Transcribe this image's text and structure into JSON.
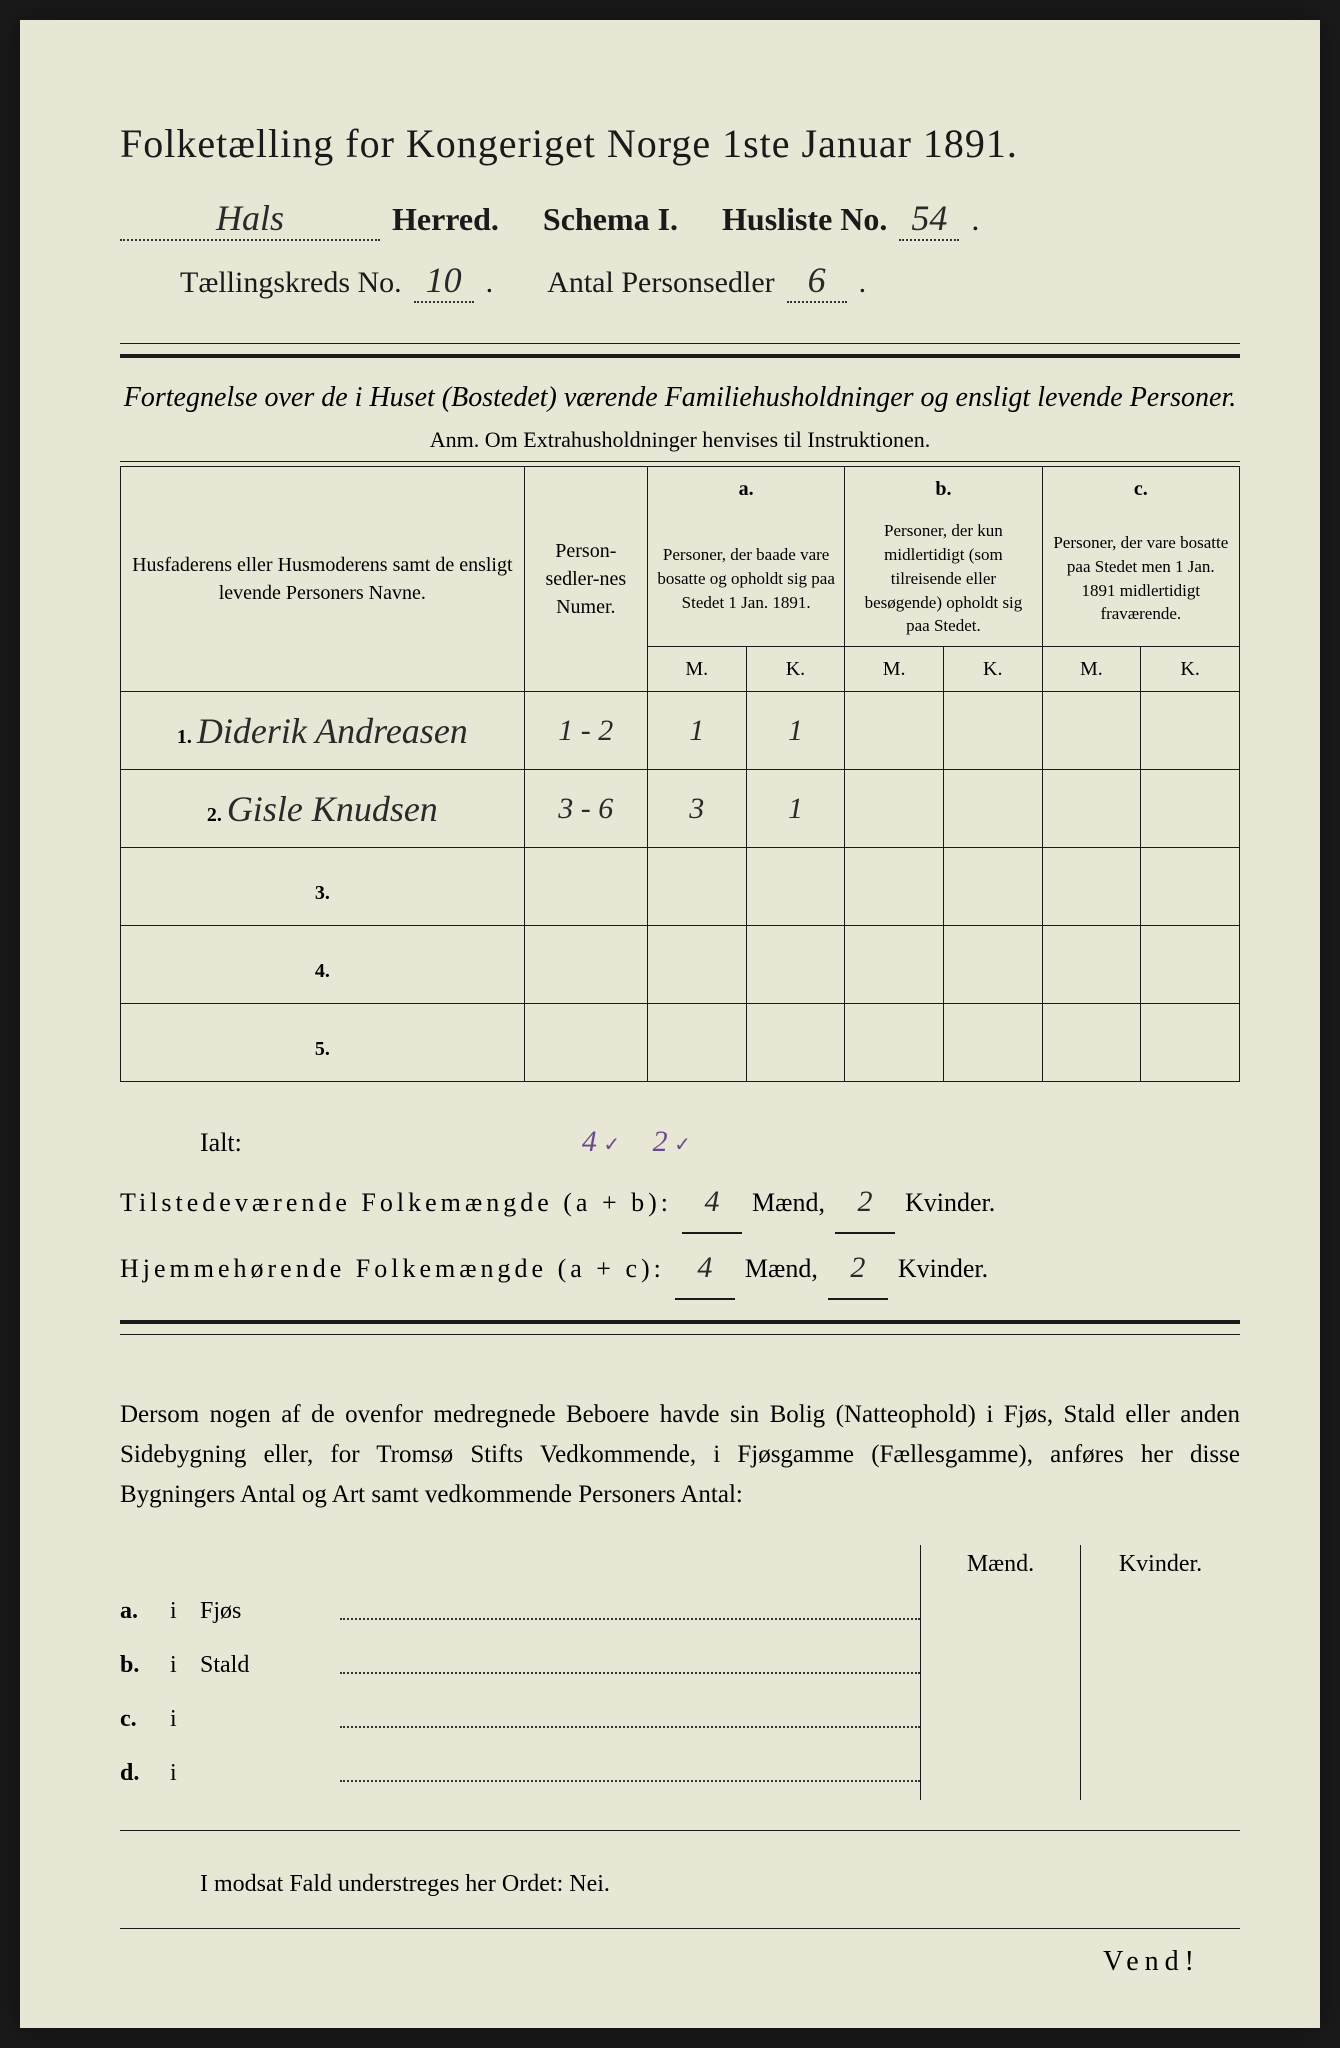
{
  "header": {
    "title": "Folketælling for Kongeriget Norge 1ste Januar 1891.",
    "herred_value": "Hals",
    "herred_label": "Herred.",
    "schema_label": "Schema I.",
    "husliste_label": "Husliste No.",
    "husliste_value": "54",
    "kreds_label": "Tællingskreds No.",
    "kreds_value": "10",
    "personsedler_label": "Antal Personsedler",
    "personsedler_value": "6"
  },
  "subtitle": "Fortegnelse over de i Huset (Bostedet) værende Familiehusholdninger og ensligt levende Personer.",
  "anm": "Anm.  Om Extrahusholdninger henvises til Instruktionen.",
  "table": {
    "col_name": "Husfaderens eller Husmoderens samt de ensligt levende Personers Navne.",
    "col_num": "Person-sedler-nes Numer.",
    "col_a_head": "a.",
    "col_a": "Personer, der baade vare bosatte og opholdt sig paa Stedet 1 Jan. 1891.",
    "col_b_head": "b.",
    "col_b": "Personer, der kun midlertidigt (som tilreisende eller besøgende) opholdt sig paa Stedet.",
    "col_c_head": "c.",
    "col_c": "Personer, der vare bosatte paa Stedet men 1 Jan. 1891 midlertidigt fraværende.",
    "m": "M.",
    "k": "K.",
    "rows": [
      {
        "n": "1.",
        "name": "Diderik Andreasen",
        "num": "1 - 2",
        "am": "1",
        "ak": "1",
        "bm": "",
        "bk": "",
        "cm": "",
        "ck": ""
      },
      {
        "n": "2.",
        "name": "Gisle Knudsen",
        "num": "3 - 6",
        "am": "3",
        "ak": "1",
        "bm": "",
        "bk": "",
        "cm": "",
        "ck": ""
      },
      {
        "n": "3.",
        "name": "",
        "num": "",
        "am": "",
        "ak": "",
        "bm": "",
        "bk": "",
        "cm": "",
        "ck": ""
      },
      {
        "n": "4.",
        "name": "",
        "num": "",
        "am": "",
        "ak": "",
        "bm": "",
        "bk": "",
        "cm": "",
        "ck": ""
      },
      {
        "n": "5.",
        "name": "",
        "num": "",
        "am": "",
        "ak": "",
        "bm": "",
        "bk": "",
        "cm": "",
        "ck": ""
      }
    ]
  },
  "totals": {
    "ialt": "Ialt:",
    "ialt_m": "4",
    "ialt_k": "2",
    "check": "✓",
    "line1_label": "Tilstedeværende Folkemængde (a + b):",
    "line1_m": "4",
    "line1_k": "2",
    "line2_label": "Hjemmehørende Folkemængde (a + c):",
    "line2_m": "4",
    "line2_k": "2",
    "maend": "Mænd,",
    "kvinder": "Kvinder."
  },
  "para": "Dersom nogen af de ovenfor medregnede Beboere havde sin Bolig (Natteophold) i Fjøs, Stald eller anden Sidebygning eller, for Tromsø Stifts Vedkommende, i Fjøsgamme (Fællesgamme), anføres her disse Bygningers Antal og Art samt vedkommende Personers Antal:",
  "bldg": {
    "maend": "Mænd.",
    "kvinder": "Kvinder.",
    "rows": [
      {
        "lbl": "a.",
        "i": "i",
        "name": "Fjøs"
      },
      {
        "lbl": "b.",
        "i": "i",
        "name": "Stald"
      },
      {
        "lbl": "c.",
        "i": "i",
        "name": ""
      },
      {
        "lbl": "d.",
        "i": "i",
        "name": ""
      }
    ]
  },
  "nei": "I modsat Fald understreges her Ordet: Nei.",
  "vend": "Vend!"
}
